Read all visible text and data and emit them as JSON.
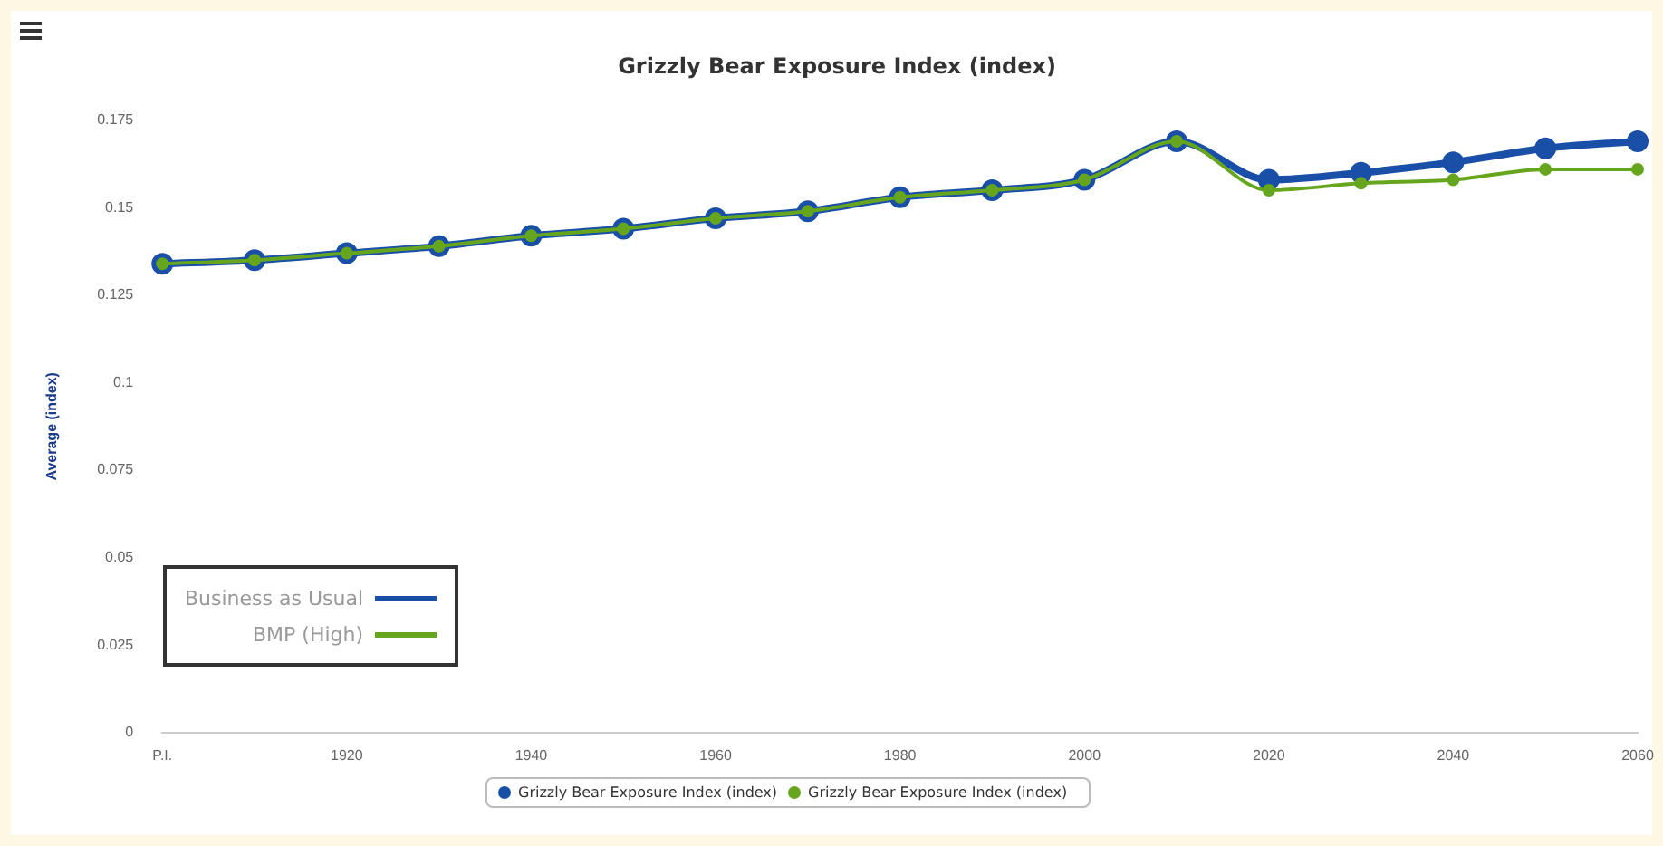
{
  "chart_data": {
    "type": "line",
    "title": "Grizzly Bear Exposure Index (index)",
    "ylabel": "Average (index)",
    "categories": [
      "P.I.",
      null,
      "1920",
      null,
      "1940",
      null,
      "1960",
      null,
      "1980",
      null,
      "2000",
      null,
      "2020",
      null,
      "2040",
      null,
      "2060"
    ],
    "series": [
      {
        "name": "Business as Usual",
        "color": "#1a4fa8",
        "values": [
          0.134,
          0.135,
          0.137,
          0.139,
          0.142,
          0.144,
          0.147,
          0.149,
          0.153,
          0.155,
          0.158,
          0.169,
          0.158,
          0.16,
          0.163,
          0.167,
          0.169
        ]
      },
      {
        "name": "BMP (High)",
        "color": "#66a61e",
        "values": [
          0.134,
          0.135,
          0.137,
          0.139,
          0.142,
          0.144,
          0.147,
          0.149,
          0.153,
          0.155,
          0.158,
          0.169,
          0.155,
          0.157,
          0.158,
          0.161,
          0.161
        ]
      }
    ],
    "ylim": [
      0,
      0.175
    ],
    "yticks": [
      0,
      0.025,
      0.05,
      0.075,
      0.1,
      0.125,
      0.15,
      0.175
    ],
    "grid": false,
    "legend": "bottom left",
    "marker": "circle",
    "line_style": "solid",
    "annotations": [
      "Grizzly Bear Exposure Index (index)",
      "Grizzly Bear Exposure Index (index)"
    ]
  }
}
